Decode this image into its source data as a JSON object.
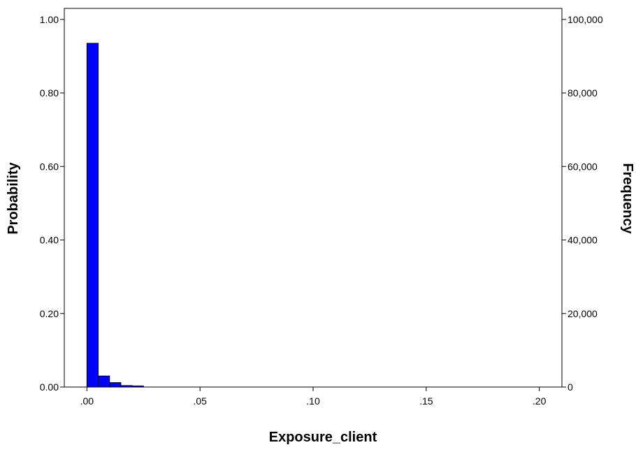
{
  "chart_data": {
    "type": "bar",
    "title": "",
    "xlabel": "Exposure_client",
    "ylabel_left": "Probability",
    "ylabel_right": "Frequency",
    "xlim": [
      -0.01,
      0.21
    ],
    "ylim_left": [
      0,
      1.03
    ],
    "ylim_right": [
      0,
      103000
    ],
    "x_ticks": [
      {
        "value": 0.0,
        "label": ".00"
      },
      {
        "value": 0.05,
        "label": ".05"
      },
      {
        "value": 0.1,
        "label": ".10"
      },
      {
        "value": 0.15,
        "label": ".15"
      },
      {
        "value": 0.2,
        "label": ".20"
      }
    ],
    "y_left_ticks": [
      {
        "value": 0.0,
        "label": "0.00"
      },
      {
        "value": 0.2,
        "label": "0.20"
      },
      {
        "value": 0.4,
        "label": "0.40"
      },
      {
        "value": 0.6,
        "label": "0.60"
      },
      {
        "value": 0.8,
        "label": "0.80"
      },
      {
        "value": 1.0,
        "label": "1.00"
      }
    ],
    "y_right_ticks": [
      {
        "value": 0,
        "label": "0"
      },
      {
        "value": 20000,
        "label": "20,000"
      },
      {
        "value": 40000,
        "label": "40,000"
      },
      {
        "value": 60000,
        "label": "60,000"
      },
      {
        "value": 80000,
        "label": "80,000"
      },
      {
        "value": 100000,
        "label": "100,000"
      }
    ],
    "bin_width": 0.005,
    "bins": [
      {
        "start": 0.0,
        "end": 0.005,
        "probability": 0.935
      },
      {
        "start": 0.005,
        "end": 0.01,
        "probability": 0.03
      },
      {
        "start": 0.01,
        "end": 0.015,
        "probability": 0.012
      },
      {
        "start": 0.015,
        "end": 0.02,
        "probability": 0.004
      },
      {
        "start": 0.02,
        "end": 0.025,
        "probability": 0.003
      }
    ],
    "bar_color": "#0000ff",
    "bar_stroke": "#000000",
    "grid": false,
    "legend": "none"
  }
}
